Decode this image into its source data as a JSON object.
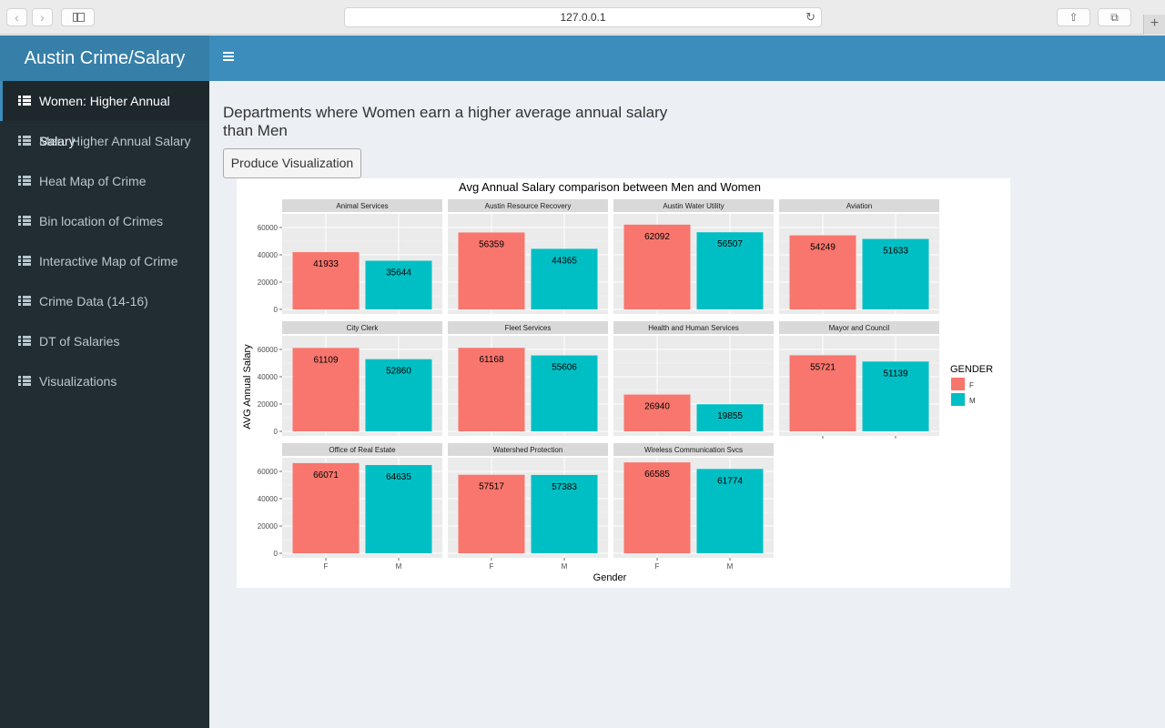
{
  "browser": {
    "url": "127.0.0.1",
    "back_label": "‹",
    "forward_label": "›",
    "reload_label": "↻",
    "share_label": "⇧",
    "tabs_label": "⧉",
    "newtab_label": "+"
  },
  "header": {
    "title": "Austin Crime/Salary"
  },
  "sidebar": {
    "items": [
      {
        "label": "Women: Higher Annual Salary",
        "active": true
      },
      {
        "label": "Men: Higher Annual Salary",
        "active": false
      },
      {
        "label": "Heat Map of Crime",
        "active": false
      },
      {
        "label": "Bin location of Crimes",
        "active": false
      },
      {
        "label": "Interactive Map of Crime",
        "active": false
      },
      {
        "label": "Crime Data (14-16)",
        "active": false
      },
      {
        "label": "DT of Salaries",
        "active": false
      },
      {
        "label": "Visualizations",
        "active": false
      }
    ]
  },
  "main": {
    "heading_line1": "Departments where Women earn a higher average annual salary",
    "heading_line2": "than Men",
    "button_label": "Produce Visualization"
  },
  "colors": {
    "F": "#f8766d",
    "M": "#00bfc4",
    "panel_bg": "#ebebeb",
    "strip_bg": "#d9d9d9"
  },
  "chart_data": {
    "type": "bar",
    "title": "Avg Annual Salary comparison between Men and Women",
    "xlabel": "Gender",
    "ylabel": "AVG Annual Salary",
    "categories": [
      "F",
      "M"
    ],
    "ylim": [
      0,
      70000
    ],
    "yticks": [
      "0",
      "20000",
      "40000",
      "60000"
    ],
    "legend": {
      "title": "GENDER",
      "entries": [
        "F",
        "M"
      ],
      "position": "right"
    },
    "grid": true,
    "facets": [
      {
        "name": "Animal Services",
        "values": [
          41933,
          35644
        ]
      },
      {
        "name": "Austin Resource Recovery",
        "values": [
          56359,
          44365
        ]
      },
      {
        "name": "Austin Water Utility",
        "values": [
          62092,
          56507
        ]
      },
      {
        "name": "Aviation",
        "values": [
          54249,
          51633
        ]
      },
      {
        "name": "City Clerk",
        "values": [
          61109,
          52860
        ]
      },
      {
        "name": "Fleet Services",
        "values": [
          61168,
          55606
        ]
      },
      {
        "name": "Health and Human Services",
        "values": [
          26940,
          19855
        ]
      },
      {
        "name": "Mayor and Council",
        "values": [
          55721,
          51139
        ]
      },
      {
        "name": "Office of Real Estate",
        "values": [
          66071,
          64635
        ]
      },
      {
        "name": "Watershed Protection",
        "values": [
          57517,
          57383
        ]
      },
      {
        "name": "Wireless Communication Svcs",
        "values": [
          66585,
          61774
        ]
      }
    ]
  }
}
